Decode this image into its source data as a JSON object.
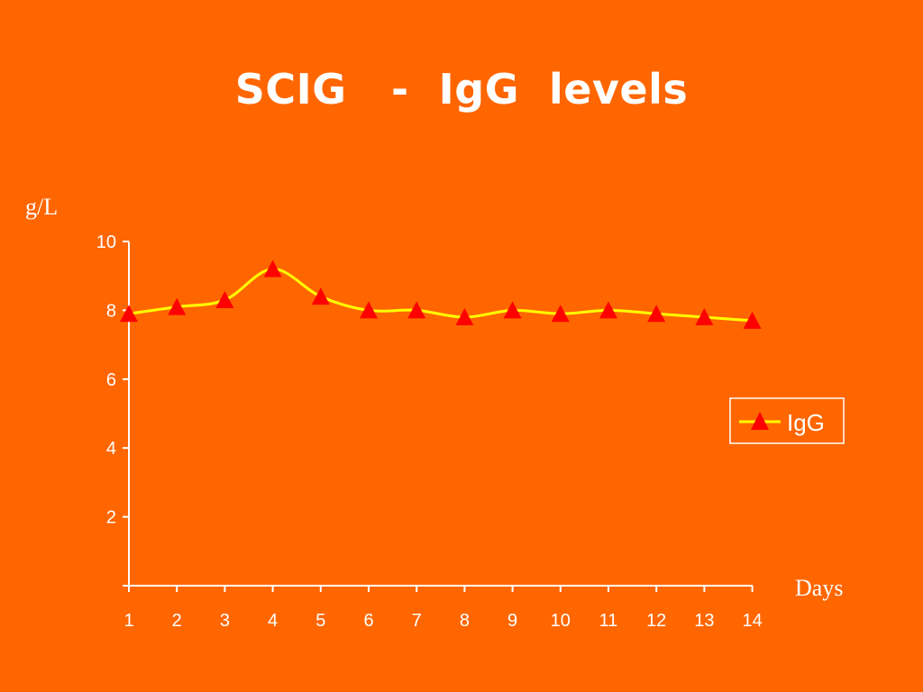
{
  "slide": {
    "title": "SCIG   -  IgG  levels"
  },
  "chart_data": {
    "type": "line",
    "title": "SCIG   -  IgG  levels",
    "ylabel": "g/L",
    "xlabel": "Days",
    "x": [
      1,
      2,
      3,
      4,
      5,
      6,
      7,
      8,
      9,
      10,
      11,
      12,
      13,
      14
    ],
    "xticks": [
      "1",
      "2",
      "3",
      "4",
      "5",
      "6",
      "7",
      "8",
      "9",
      "10",
      "11",
      "12",
      "13",
      "14"
    ],
    "yticks": [
      "2",
      "4",
      "6",
      "8",
      "10"
    ],
    "ylim": [
      0,
      10
    ],
    "grid": false,
    "legend_position": "right",
    "series": [
      {
        "name": "IgG",
        "values": [
          7.9,
          8.1,
          8.3,
          9.2,
          8.4,
          8.0,
          8.0,
          7.8,
          8.0,
          7.9,
          8.0,
          7.9,
          7.8,
          7.7
        ],
        "line_color": "#FFFF00",
        "marker_color": "#FF0000",
        "marker": "triangle"
      }
    ],
    "axis_color": "#FFFFFF",
    "background_color": "#FF6600"
  }
}
